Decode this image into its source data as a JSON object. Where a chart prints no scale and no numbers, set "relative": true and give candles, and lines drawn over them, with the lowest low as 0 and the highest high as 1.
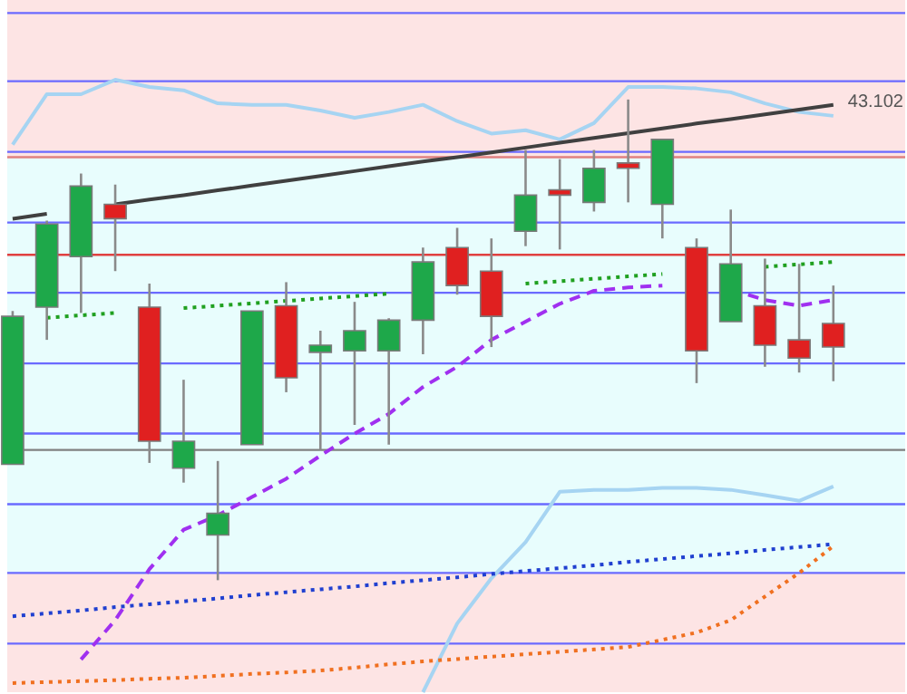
{
  "chart_data": {
    "type": "candlestick",
    "relative": true,
    "categories": [
      null,
      null,
      null,
      null,
      null,
      null,
      null,
      null,
      null,
      null,
      null,
      null,
      null,
      null,
      null,
      null,
      null,
      null,
      null,
      null,
      null,
      null,
      null,
      null,
      null
    ],
    "ohlc": [
      [
        0.241,
        0.56,
        0.241,
        0.549
      ],
      [
        0.568,
        0.748,
        0.5,
        0.741
      ],
      [
        0.673,
        0.846,
        0.556,
        0.82
      ],
      [
        0.782,
        0.823,
        0.643,
        0.752
      ],
      [
        0.568,
        0.617,
        0.244,
        0.289
      ],
      [
        0.233,
        0.417,
        0.203,
        0.289
      ],
      [
        0.094,
        0.248,
        0,
        0.139
      ],
      [
        0.282,
        0.56,
        0.282,
        0.56
      ],
      [
        0.571,
        0.62,
        0.391,
        0.421
      ],
      [
        0.474,
        0.519,
        0.271,
        0.489
      ],
      [
        0.477,
        0.579,
        0.323,
        0.519
      ],
      [
        0.477,
        0.545,
        0.282,
        0.541
      ],
      [
        0.541,
        0.692,
        0.47,
        0.662
      ],
      [
        0.692,
        0.733,
        0.594,
        0.613
      ],
      [
        0.643,
        0.711,
        0.485,
        0.549
      ],
      [
        0.726,
        0.895,
        0.695,
        0.801
      ],
      [
        0.812,
        0.876,
        0.688,
        0.801
      ],
      [
        0.786,
        0.895,
        0.767,
        0.857
      ],
      [
        0.868,
        1,
        0.786,
        0.857
      ],
      [
        0.782,
        0.917,
        0.711,
        0.917
      ],
      [
        0.692,
        0.711,
        0.41,
        0.477
      ],
      [
        0.538,
        0.771,
        0.538,
        0.658
      ],
      [
        0.571,
        0.669,
        0.444,
        0.489
      ],
      [
        0.5,
        0.658,
        0.432,
        0.462
      ],
      [
        0.534,
        0.613,
        0.414,
        0.485
      ]
    ],
    "colors": [
      "#1ea84a",
      "#1ea84a",
      "#1ea84a",
      "#e02020",
      "#e02020",
      "#1ea84a",
      "#1ea84a",
      "#1ea84a",
      "#e02020",
      "#1ea84a",
      "#1ea84a",
      "#1ea84a",
      "#1ea84a",
      "#e02020",
      "#e02020",
      "#1ea84a",
      "#e02020",
      "#1ea84a",
      "#e02020",
      "#1ea84a",
      "#e02020",
      "#1ea84a",
      "#e02020",
      "#e02020",
      "#e02020"
    ],
    "series": [
      {
        "type": "line",
        "color": "#a6d4f2",
        "line_style": "solid",
        "values": [
          0.906,
          1.011,
          1.011,
          1.041,
          1.026,
          1.019,
          0.992,
          0.989,
          0.989,
          0.977,
          0.962,
          0.974,
          0.989,
          0.955,
          0.929,
          0.936,
          0.917,
          0.951,
          1.026,
          1.026,
          1.023,
          1.015,
          0.992,
          0.974,
          0.966
        ]
      },
      {
        "type": "line",
        "color": "#a6d4f2",
        "line_style": "solid",
        "values": [
          null,
          null,
          null,
          null,
          null,
          null,
          null,
          null,
          null,
          null,
          null,
          null,
          -0.233,
          -0.09,
          0.004,
          0.079,
          0.184,
          0.188,
          0.188,
          0.192,
          0.192,
          0.188,
          0.177,
          0.165,
          0.195
        ]
      },
      {
        "type": "line",
        "color": "#404040",
        "line_style": "solid",
        "values": [
          0.752,
          0.762,
          null,
          0.782,
          0.792,
          0.801,
          0.811,
          0.821,
          0.831,
          0.841,
          0.851,
          0.861,
          0.871,
          0.88,
          0.89,
          0.9,
          0.91,
          0.92,
          0.93,
          0.94,
          0.95,
          0.959,
          0.969,
          0.979,
          0.989
        ]
      },
      {
        "type": "line",
        "color": "#20a020",
        "line_style": "dotted",
        "values": [
          null,
          0.546,
          0.551,
          0.556,
          null,
          0.566,
          0.571,
          0.576,
          0.581,
          0.586,
          0.591,
          0.596,
          null,
          null,
          null,
          0.617,
          0.622,
          0.627,
          0.632,
          0.637,
          null,
          null,
          0.652,
          0.657,
          0.662
        ]
      },
      {
        "type": "line",
        "color": "#a030f0",
        "line_style": "dashed",
        "values": [
          null,
          null,
          -0.165,
          -0.083,
          0.023,
          0.105,
          0.135,
          0.173,
          0.211,
          0.259,
          0.305,
          0.346,
          0.402,
          0.444,
          0.5,
          0.538,
          0.575,
          0.602,
          0.609,
          0.613,
          null,
          0.605,
          0.583,
          0.571,
          0.583
        ]
      },
      {
        "type": "line",
        "color": "#2040d0",
        "line_style": "dotted",
        "values": [
          -0.075,
          -0.069,
          -0.063,
          -0.056,
          -0.05,
          -0.044,
          -0.038,
          -0.031,
          -0.025,
          -0.019,
          -0.013,
          -0.006,
          0,
          0.006,
          0.013,
          0.019,
          0.025,
          0.031,
          0.038,
          0.044,
          0.05,
          0.056,
          0.063,
          0.069,
          0.075
        ]
      },
      {
        "type": "line",
        "color": "#f07020",
        "line_style": "dotted",
        "values": [
          -0.214,
          -0.212,
          -0.21,
          -0.208,
          -0.205,
          -0.203,
          -0.199,
          -0.195,
          -0.192,
          -0.188,
          -0.182,
          -0.175,
          -0.169,
          -0.164,
          -0.159,
          -0.154,
          -0.149,
          -0.144,
          -0.139,
          -0.124,
          -0.109,
          -0.083,
          -0.034,
          0.015,
          0.071
        ]
      }
    ],
    "bands": [
      {
        "axis": "y",
        "from": 0.88,
        "to": 1.207,
        "color": "#fde4e4"
      },
      {
        "axis": "y",
        "from": 0.015,
        "to": 0.88,
        "color": "#e8fdfd"
      },
      {
        "axis": "y",
        "from": -0.233,
        "to": 0.015,
        "color": "#fde4e4"
      }
    ],
    "ref_lines": [
      {
        "axis": "y",
        "value": 1.18,
        "color": "#6a6aff"
      },
      {
        "axis": "y",
        "value": 1.038,
        "color": "#6a6aff"
      },
      {
        "axis": "y",
        "value": 0.891,
        "color": "#6a6aff"
      },
      {
        "axis": "y",
        "value": 0.88,
        "color": "#e08080"
      },
      {
        "axis": "y",
        "value": 0.744,
        "color": "#6a6aff"
      },
      {
        "axis": "y",
        "value": 0.677,
        "color": "#e04040"
      },
      {
        "axis": "y",
        "value": 0.598,
        "color": "#6a6aff"
      },
      {
        "axis": "y",
        "value": 0.451,
        "color": "#6a6aff"
      },
      {
        "axis": "y",
        "value": 0.305,
        "color": "#6a6aff"
      },
      {
        "axis": "y",
        "value": 0.271,
        "color": "#808080"
      },
      {
        "axis": "y",
        "value": 0.158,
        "color": "#6a6aff"
      },
      {
        "axis": "y",
        "value": 0.015,
        "color": "#6a6aff"
      },
      {
        "axis": "y",
        "value": -0.132,
        "color": "#6a6aff"
      }
    ],
    "annotations": [
      "43.102"
    ]
  }
}
